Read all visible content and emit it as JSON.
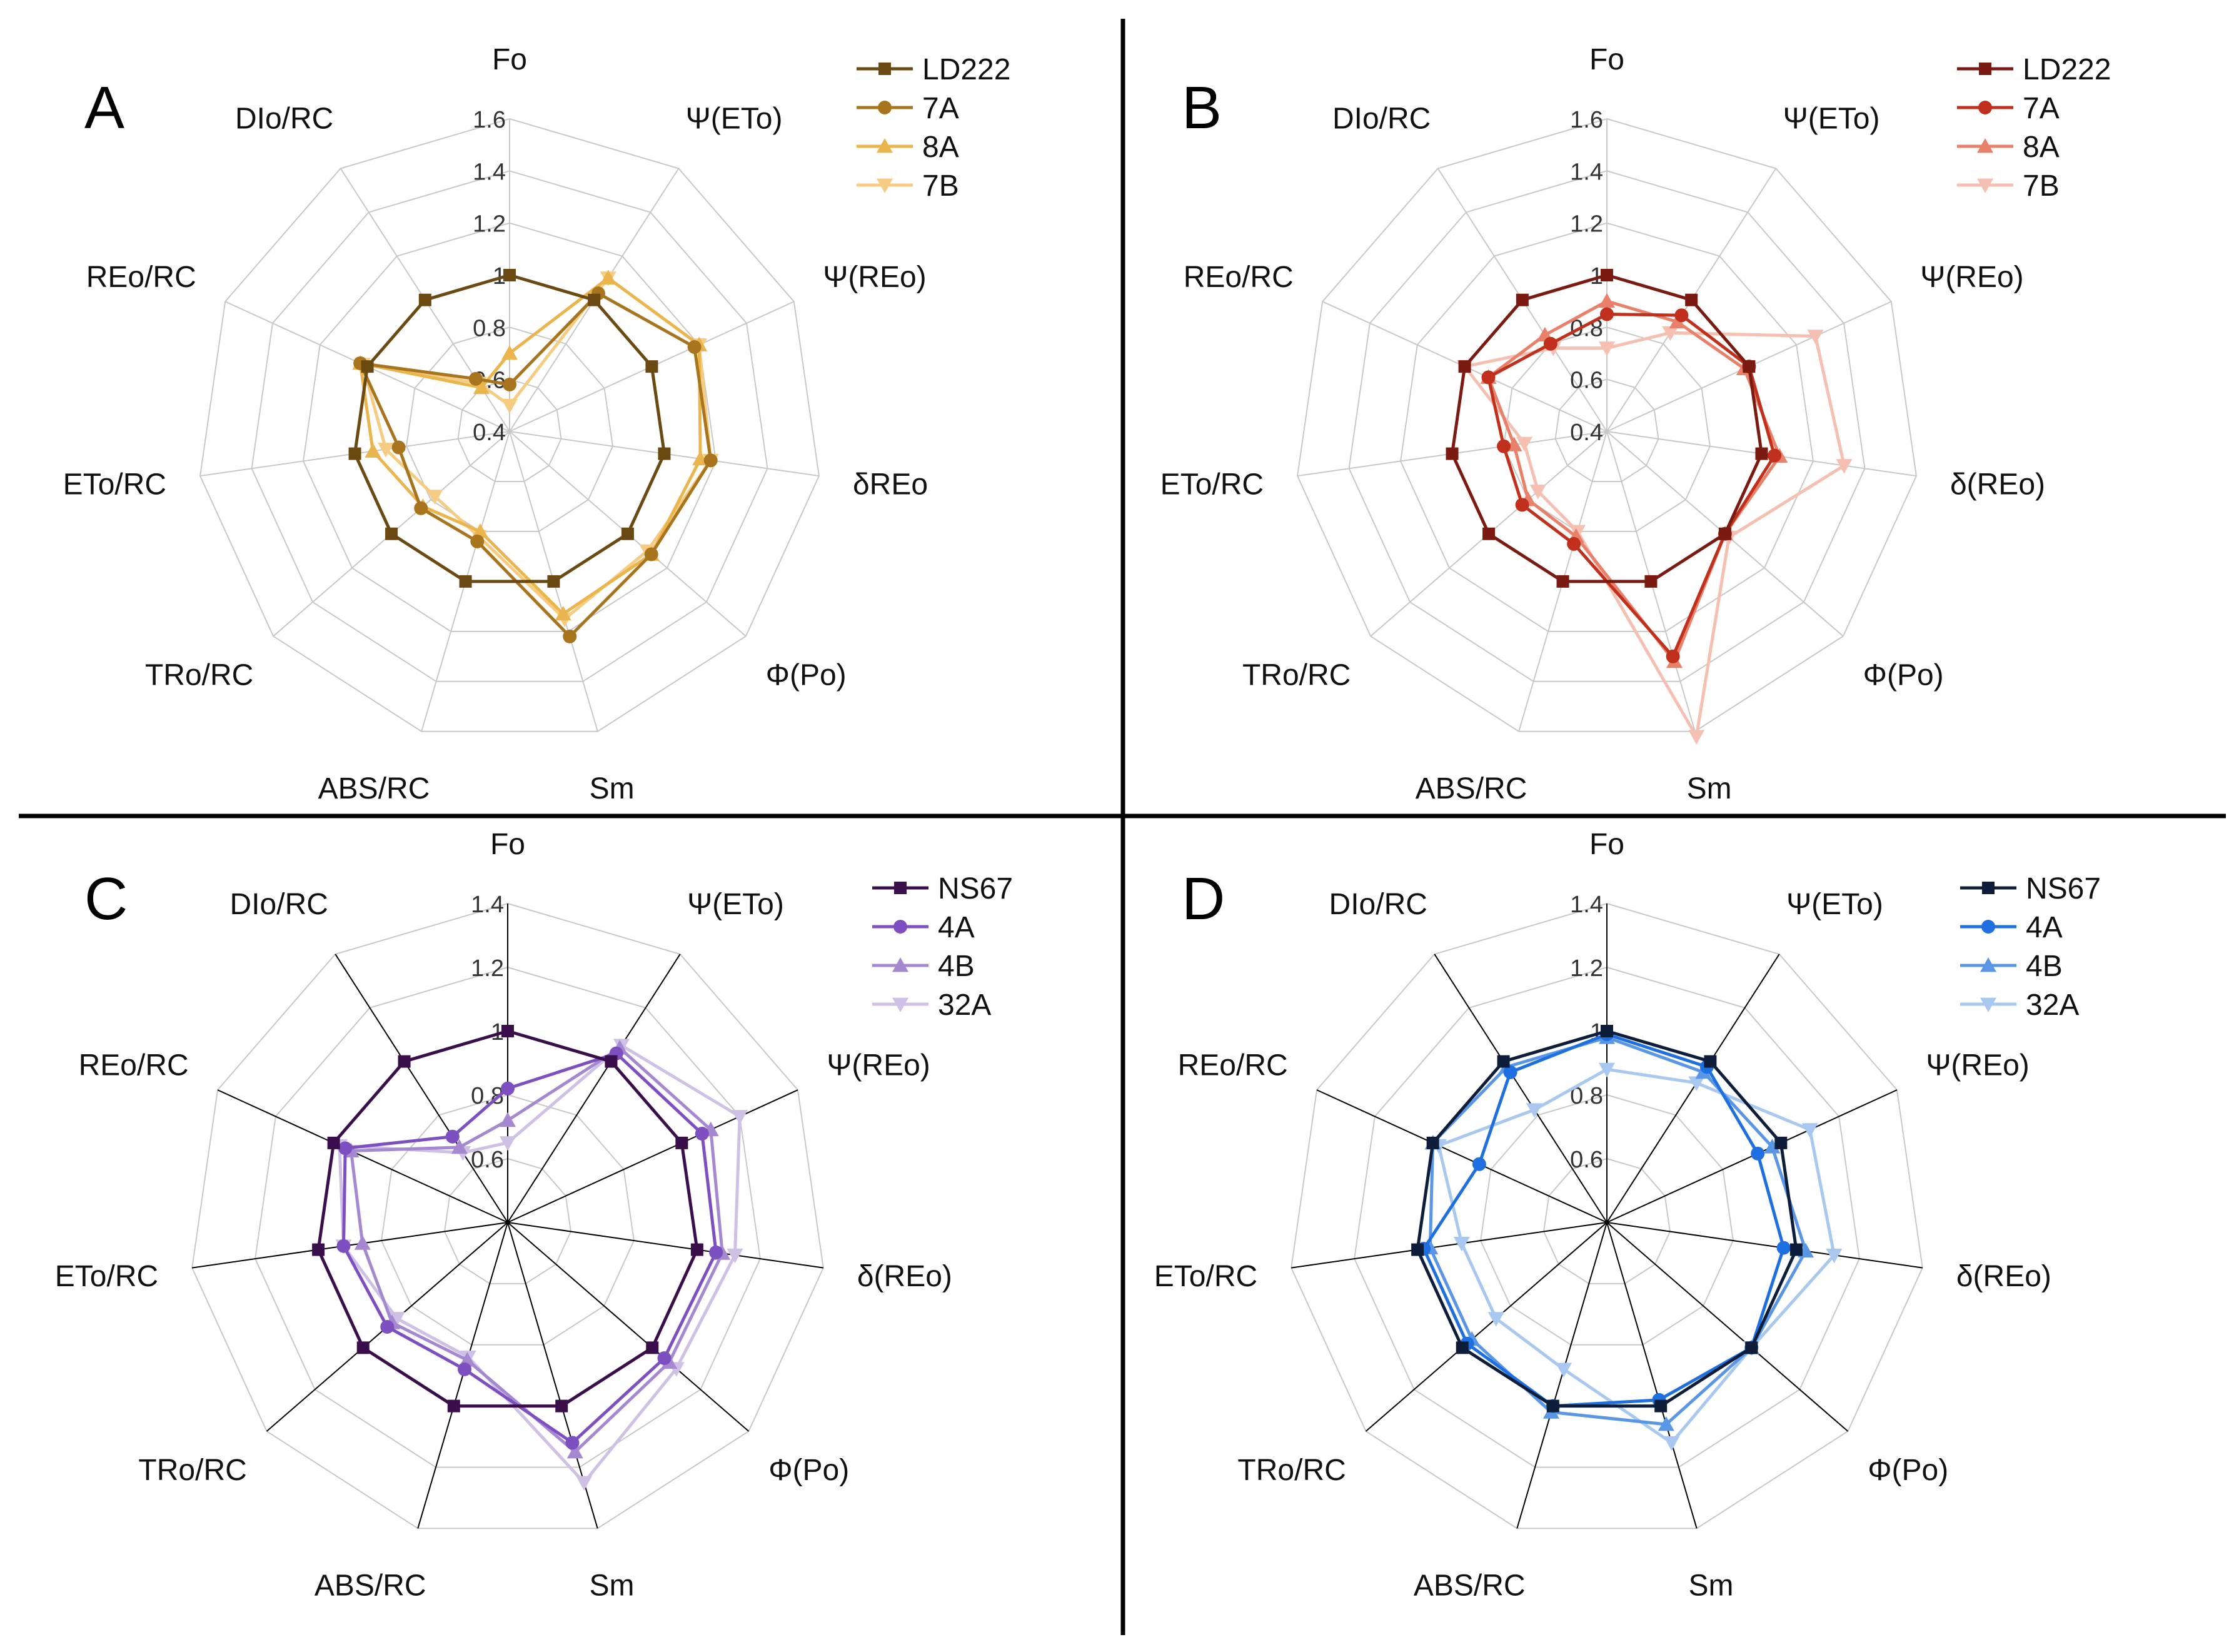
{
  "figure": {
    "dividers": true
  },
  "chart_data": [
    {
      "panel": "A",
      "type": "radar",
      "axes": [
        "Fo",
        "Ψ(ETo)",
        "Ψ(REo)",
        "δREo",
        "Φ(Po)",
        "Sm",
        "ABS/RC",
        "TRo/RC",
        "ETo/RC",
        "REo/RC",
        "DIo/RC"
      ],
      "rlim": [
        0.4,
        1.6
      ],
      "ticks": [
        "0.4",
        "0.6",
        "0.8",
        "1",
        "1.2",
        "1.4",
        "1.6"
      ],
      "tick_values": [
        0.4,
        0.6,
        0.8,
        1.0,
        1.2,
        1.4,
        1.6
      ],
      "grid_color": "#c8c8c8",
      "spoke_color": "#c8c8c8",
      "series": [
        {
          "name": "LD222",
          "marker": "square",
          "color": "#6b4a12",
          "values": [
            1.0,
            1.0,
            1.0,
            1.0,
            1.0,
            1.0,
            1.0,
            1.0,
            1.0,
            1.0,
            1.0
          ]
        },
        {
          "name": "7A",
          "marker": "circle",
          "color": "#a9741e",
          "values": [
            0.58,
            1.03,
            1.18,
            1.18,
            1.12,
            1.22,
            0.84,
            0.85,
            0.83,
            1.03,
            0.64
          ]
        },
        {
          "name": "8A",
          "marker": "triangle-up",
          "color": "#ebb54e",
          "values": [
            0.7,
            1.1,
            1.2,
            1.14,
            1.12,
            1.13,
            0.8,
            0.84,
            0.93,
            1.03,
            0.6
          ]
        },
        {
          "name": "7B",
          "marker": "triangle-down",
          "color": "#f5cc82",
          "values": [
            0.5,
            1.1,
            1.2,
            1.18,
            1.1,
            1.15,
            0.82,
            0.78,
            0.88,
            1.02,
            0.62
          ]
        }
      ]
    },
    {
      "panel": "B",
      "type": "radar",
      "axes": [
        "Fo",
        "Ψ(ETo)",
        "Ψ(REo)",
        "δ(REo)",
        "Φ(Po)",
        "Sm",
        "ABS/RC",
        "TRo/RC",
        "ETo/RC",
        "REo/RC",
        "DIo/RC"
      ],
      "rlim": [
        0.4,
        1.6
      ],
      "ticks": [
        "0.4",
        "0.6",
        "0.8",
        "1",
        "1.2",
        "1.4",
        "1.6"
      ],
      "tick_values": [
        0.4,
        0.6,
        0.8,
        1.0,
        1.2,
        1.4,
        1.6
      ],
      "grid_color": "#c8c8c8",
      "spoke_color": "#c8c8c8",
      "series": [
        {
          "name": "LD222",
          "marker": "square",
          "color": "#7a1a10",
          "values": [
            1.0,
            1.0,
            1.0,
            1.0,
            1.0,
            1.0,
            1.0,
            1.0,
            1.0,
            1.0,
            1.0
          ]
        },
        {
          "name": "7A",
          "marker": "circle",
          "color": "#c0301c",
          "values": [
            0.85,
            0.93,
            1.0,
            1.05,
            1.0,
            1.3,
            0.85,
            0.83,
            0.8,
            0.9,
            0.8
          ]
        },
        {
          "name": "8A",
          "marker": "triangle-up",
          "color": "#e8806a",
          "values": [
            0.9,
            0.9,
            0.98,
            1.07,
            1.0,
            1.32,
            0.82,
            0.8,
            0.76,
            0.9,
            0.84
          ]
        },
        {
          "name": "7B",
          "marker": "triangle-down",
          "color": "#f5bfb2",
          "values": [
            0.72,
            0.85,
            1.28,
            1.32,
            1.02,
            1.62,
            0.8,
            0.75,
            0.72,
            1.0,
            0.78
          ]
        }
      ]
    },
    {
      "panel": "C",
      "type": "radar",
      "axes": [
        "Fo",
        "Ψ(ETo)",
        "Ψ(REo)",
        "δ(REo)",
        "Φ(Po)",
        "Sm",
        "ABS/RC",
        "TRo/RC",
        "ETo/RC",
        "REo/RC",
        "DIo/RC"
      ],
      "rlim": [
        0.4,
        1.4
      ],
      "ticks": [
        "0.6",
        "0.8",
        "1",
        "1.2",
        "1.4"
      ],
      "tick_values": [
        0.6,
        0.8,
        1.0,
        1.2,
        1.4
      ],
      "grid_color": "#c8c8c8",
      "spoke_color": "#000000",
      "series": [
        {
          "name": "NS67",
          "marker": "square",
          "color": "#3a0e4a",
          "values": [
            1.0,
            1.0,
            1.0,
            1.0,
            1.0,
            1.0,
            1.0,
            1.0,
            1.0,
            1.0,
            1.0
          ]
        },
        {
          "name": "4A",
          "marker": "circle",
          "color": "#7e4fc0",
          "values": [
            0.82,
            1.03,
            1.07,
            1.06,
            1.05,
            1.12,
            0.88,
            0.9,
            0.92,
            0.96,
            0.72
          ]
        },
        {
          "name": "4B",
          "marker": "triangle-up",
          "color": "#a688d0",
          "values": [
            0.72,
            1.05,
            1.1,
            1.08,
            1.07,
            1.15,
            0.85,
            0.88,
            0.86,
            0.94,
            0.68
          ]
        },
        {
          "name": "32A",
          "marker": "triangle-down",
          "color": "#cfc0e6",
          "values": [
            0.65,
            1.06,
            1.2,
            1.12,
            1.1,
            1.25,
            0.84,
            0.86,
            0.92,
            0.98,
            0.66
          ]
        }
      ]
    },
    {
      "panel": "D",
      "type": "radar",
      "axes": [
        "Fo",
        "Ψ(ETo)",
        "Ψ(REo)",
        "δ(REo)",
        "Φ(Po)",
        "Sm",
        "ABS/RC",
        "TRo/RC",
        "ETo/RC",
        "REo/RC",
        "DIo/RC"
      ],
      "rlim": [
        0.4,
        1.4
      ],
      "ticks": [
        "0.6",
        "0.8",
        "1",
        "1.2",
        "1.4"
      ],
      "tick_values": [
        0.6,
        0.8,
        1.0,
        1.2,
        1.4
      ],
      "grid_color": "#c8c8c8",
      "spoke_color": "#000000",
      "series": [
        {
          "name": "NS67",
          "marker": "square",
          "color": "#0e1e3a",
          "values": [
            1.0,
            1.0,
            1.0,
            1.0,
            1.0,
            1.0,
            1.0,
            1.0,
            1.0,
            1.0,
            1.0
          ]
        },
        {
          "name": "4A",
          "marker": "circle",
          "color": "#1e6fe0",
          "values": [
            0.99,
            0.98,
            0.92,
            0.96,
            1.0,
            0.98,
            1.0,
            0.98,
            0.98,
            0.84,
            0.96
          ]
        },
        {
          "name": "4B",
          "marker": "triangle-up",
          "color": "#5a96e6",
          "values": [
            0.98,
            0.96,
            0.97,
            1.03,
            1.0,
            1.06,
            1.02,
            0.96,
            0.96,
            1.0,
            0.98
          ]
        },
        {
          "name": "32A",
          "marker": "triangle-down",
          "color": "#a8c8f0",
          "values": [
            0.88,
            0.92,
            1.1,
            1.12,
            1.0,
            1.12,
            0.88,
            0.86,
            0.86,
            0.98,
            0.82
          ]
        }
      ]
    }
  ]
}
